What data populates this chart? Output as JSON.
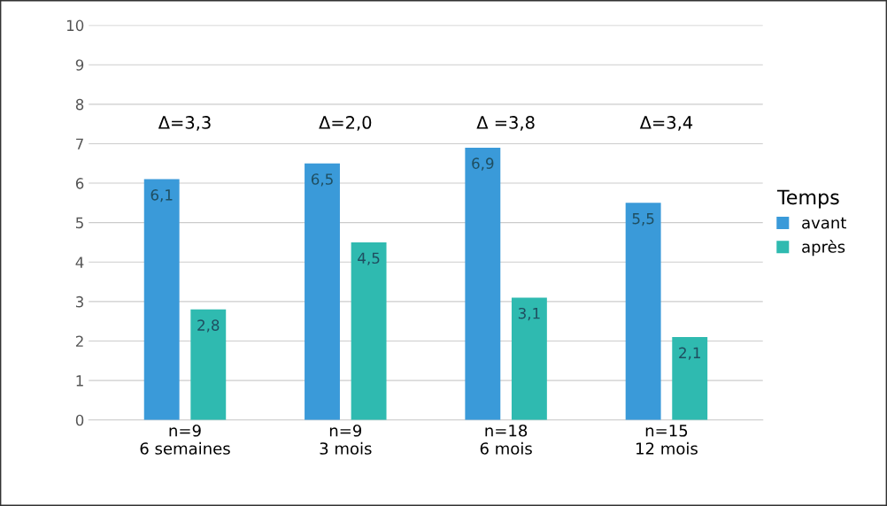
{
  "chart_data": {
    "type": "bar",
    "categories": [
      "n=9\n6 semaines",
      "n=9\n3 mois",
      "n=18\n6 mois",
      "n=15\n12 mois"
    ],
    "series": [
      {
        "name": "avant",
        "color": "#3a9ad9",
        "values": [
          6.1,
          6.5,
          6.9,
          5.5
        ],
        "value_labels": [
          "6,1",
          "6,5",
          "6,9",
          "5,5"
        ]
      },
      {
        "name": "après",
        "color": "#2fbab0",
        "values": [
          2.8,
          4.5,
          3.1,
          2.1
        ],
        "value_labels": [
          "2,8",
          "4,5",
          "3,1",
          "2,1"
        ]
      }
    ],
    "annotations": [
      "Δ=3,3",
      "Δ=2,0",
      "Δ =3,8",
      "Δ=3,4"
    ],
    "legend_title": "Temps",
    "legend": "right",
    "ylim": [
      0,
      10
    ],
    "yticks": [
      0,
      1,
      2,
      3,
      4,
      5,
      6,
      7,
      8,
      9,
      10
    ],
    "grid": "y"
  }
}
